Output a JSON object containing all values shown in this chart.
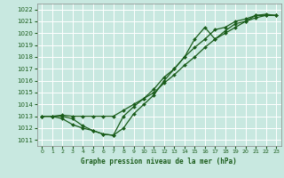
{
  "title": "Graphe pression niveau de la mer (hPa)",
  "bg_color": "#c8e8e0",
  "grid_color": "#b8d8d0",
  "line_color": "#1a5c1a",
  "xlim": [
    -0.5,
    23.5
  ],
  "ylim": [
    1010.5,
    1022.5
  ],
  "x_ticks": [
    0,
    1,
    2,
    3,
    4,
    5,
    6,
    7,
    8,
    9,
    10,
    11,
    12,
    13,
    14,
    15,
    16,
    17,
    18,
    19,
    20,
    21,
    22,
    23
  ],
  "y_ticks": [
    1011,
    1012,
    1013,
    1014,
    1015,
    1016,
    1017,
    1018,
    1019,
    1020,
    1021,
    1022
  ],
  "xlabel_bg": "#2a6b2a",
  "xlabel_fg": "#ffffff",
  "series": [
    [
      1013.0,
      1013.0,
      1013.1,
      1013.0,
      1013.0,
      1013.0,
      1013.0,
      1013.0,
      1013.5,
      1014.0,
      1014.5,
      1015.0,
      1015.8,
      1016.5,
      1017.3,
      1018.0,
      1018.8,
      1019.5,
      1020.0,
      1020.5,
      1021.0,
      1021.3,
      1021.5,
      1021.5
    ],
    [
      1013.0,
      1013.0,
      1012.8,
      1012.3,
      1012.0,
      1011.8,
      1011.5,
      1011.4,
      1012.0,
      1013.2,
      1014.0,
      1014.8,
      1016.0,
      1017.0,
      1018.0,
      1018.8,
      1019.5,
      1020.3,
      1020.5,
      1021.0,
      1021.2,
      1021.5,
      1021.6,
      1021.5
    ],
    [
      1013.0,
      1013.0,
      1013.0,
      1012.8,
      1012.2,
      1011.8,
      1011.5,
      1011.4,
      1013.0,
      1013.8,
      1014.5,
      1015.3,
      1016.3,
      1017.0,
      1018.0,
      1019.5,
      1020.5,
      1019.5,
      1020.2,
      1020.8,
      1021.0,
      1021.5,
      1021.5,
      1021.5
    ]
  ],
  "x_vals": [
    0,
    1,
    2,
    3,
    4,
    5,
    6,
    7,
    8,
    9,
    10,
    11,
    12,
    13,
    14,
    15,
    16,
    17,
    18,
    19,
    20,
    21,
    22,
    23
  ]
}
